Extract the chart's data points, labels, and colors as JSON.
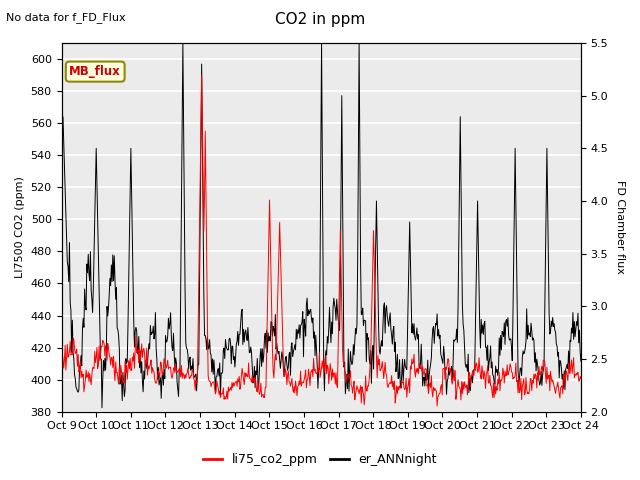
{
  "title": "CO2 in ppm",
  "subtitle": "No data for f_FD_Flux",
  "ylabel_left": "LI7500 CO2 (ppm)",
  "ylabel_right": "FD Chamber flux",
  "ylim_left": [
    380,
    610
  ],
  "ylim_right": [
    2.0,
    5.5
  ],
  "yticks_left": [
    380,
    400,
    420,
    440,
    460,
    480,
    500,
    520,
    540,
    560,
    580,
    600
  ],
  "yticks_right": [
    2.0,
    2.5,
    3.0,
    3.5,
    4.0,
    4.5,
    5.0,
    5.5
  ],
  "xtick_labels": [
    "Oct 9",
    "Oct 10",
    "Oct 11",
    "Oct 12",
    "Oct 13",
    "Oct 14",
    "Oct 15",
    "Oct 16",
    "Oct 17",
    "Oct 18",
    "Oct 19",
    "Oct 20",
    "Oct 21",
    "Oct 22",
    "Oct 23",
    "Oct 24"
  ],
  "legend_label1": "li75_co2_ppm",
  "legend_label2": "er_ANNnight",
  "legend_box_label": "MB_flux",
  "line1_color": "red",
  "line2_color": "black",
  "background_color": "#ebebeb",
  "grid_color": "white"
}
